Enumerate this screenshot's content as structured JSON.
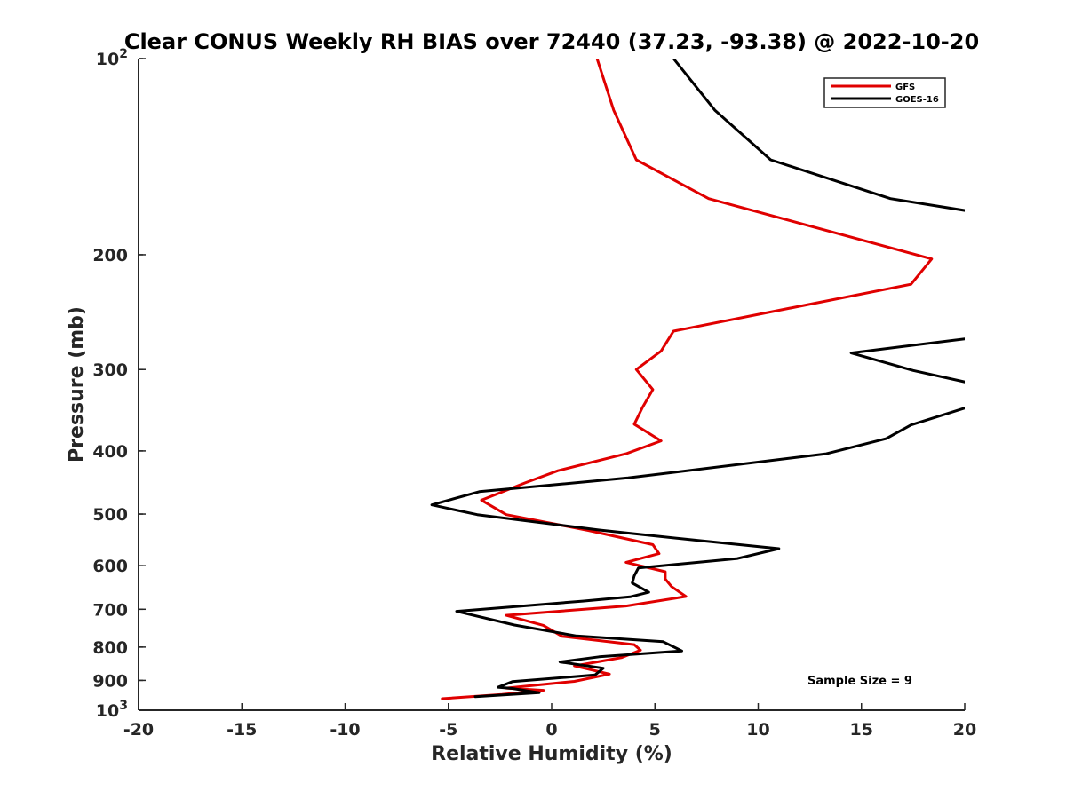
{
  "chart_data": {
    "type": "line",
    "title": "Clear CONUS Weekly RH BIAS over 72440 (37.23, -93.38) @ 2022-10-20",
    "xlabel": "Relative Humidity (%)",
    "ylabel": "Pressure (mb)",
    "xlim": [
      -20,
      20
    ],
    "ylim": [
      100,
      1000
    ],
    "y_scale": "log",
    "y_reversed": true,
    "x_ticks": [
      "-20",
      "-15",
      "-10",
      "-5",
      "0",
      "5",
      "10",
      "15",
      "20"
    ],
    "y_ticks": [
      {
        "value": 100,
        "base": "10",
        "exp": "2"
      },
      {
        "value": 200,
        "label": "200"
      },
      {
        "value": 300,
        "label": "300"
      },
      {
        "value": 400,
        "label": "400"
      },
      {
        "value": 500,
        "label": "500"
      },
      {
        "value": 600,
        "label": "600"
      },
      {
        "value": 700,
        "label": "700"
      },
      {
        "value": 800,
        "label": "800"
      },
      {
        "value": 900,
        "label": "900"
      },
      {
        "value": 1000,
        "base": "10",
        "exp": "3"
      }
    ],
    "grid": false,
    "legend_position": "top-right",
    "annotation": "Sample Size = 9",
    "series": [
      {
        "name": "GFS",
        "color": "#e00000",
        "points": [
          [
            2.2,
            100
          ],
          [
            3.0,
            120
          ],
          [
            4.1,
            143
          ],
          [
            7.6,
            164
          ],
          [
            18.4,
            203
          ],
          [
            17.4,
            222
          ],
          [
            5.9,
            262
          ],
          [
            5.3,
            281
          ],
          [
            4.1,
            300
          ],
          [
            4.9,
            322
          ],
          [
            4.4,
            343
          ],
          [
            4.0,
            364
          ],
          [
            5.3,
            386
          ],
          [
            3.6,
            404
          ],
          [
            0.3,
            429
          ],
          [
            -1.3,
            448
          ],
          [
            -3.4,
            476
          ],
          [
            -2.2,
            501
          ],
          [
            1.8,
            530
          ],
          [
            4.9,
            557
          ],
          [
            5.2,
            575
          ],
          [
            3.6,
            593
          ],
          [
            5.5,
            613
          ],
          [
            5.5,
            629
          ],
          [
            5.8,
            646
          ],
          [
            6.5,
            669
          ],
          [
            3.6,
            692
          ],
          [
            -2.2,
            715
          ],
          [
            -0.4,
            741
          ],
          [
            0.5,
            770
          ],
          [
            4.0,
            793
          ],
          [
            4.3,
            809
          ],
          [
            3.4,
            830
          ],
          [
            1.1,
            855
          ],
          [
            2.8,
            880
          ],
          [
            1.1,
            903
          ],
          [
            -2.2,
            925
          ],
          [
            -0.4,
            932
          ],
          [
            -2.4,
            946
          ],
          [
            -5.3,
            960
          ]
        ]
      },
      {
        "name": "GOES-16",
        "color": "#000000",
        "points": [
          [
            5.9,
            100
          ],
          [
            7.9,
            120
          ],
          [
            10.6,
            143
          ],
          [
            16.4,
            164
          ],
          [
            20.5,
            172
          ]
        ],
        "segments": [
          [
            [
              20.5,
              268
            ],
            [
              14.5,
              283
            ],
            [
              17.5,
              301
            ],
            [
              20.5,
              316
            ]
          ],
          [
            [
              20.5,
              340
            ],
            [
              17.4,
              365
            ],
            [
              16.2,
              383
            ],
            [
              13.3,
              404
            ],
            [
              3.7,
              440
            ],
            [
              -3.5,
              462
            ],
            [
              -5.8,
              484
            ],
            [
              -3.6,
              501
            ],
            [
              2.3,
              529
            ],
            [
              7.1,
              549
            ],
            [
              11.0,
              565
            ],
            [
              9.0,
              585
            ],
            [
              4.2,
              605
            ],
            [
              4.0,
              622
            ],
            [
              3.9,
              638
            ],
            [
              4.7,
              659
            ],
            [
              3.8,
              670
            ],
            [
              1.5,
              680
            ],
            [
              -4.6,
              705
            ],
            [
              -1.8,
              740
            ],
            [
              1.2,
              769
            ],
            [
              5.4,
              785
            ],
            [
              6.3,
              811
            ],
            [
              2.3,
              828
            ],
            [
              0.4,
              843
            ],
            [
              2.5,
              862
            ],
            [
              2.1,
              883
            ],
            [
              -1.9,
              904
            ],
            [
              -2.6,
              922
            ],
            [
              -1.9,
              926
            ],
            [
              -0.6,
              940
            ],
            [
              -3.7,
              953
            ]
          ]
        ]
      }
    ]
  }
}
